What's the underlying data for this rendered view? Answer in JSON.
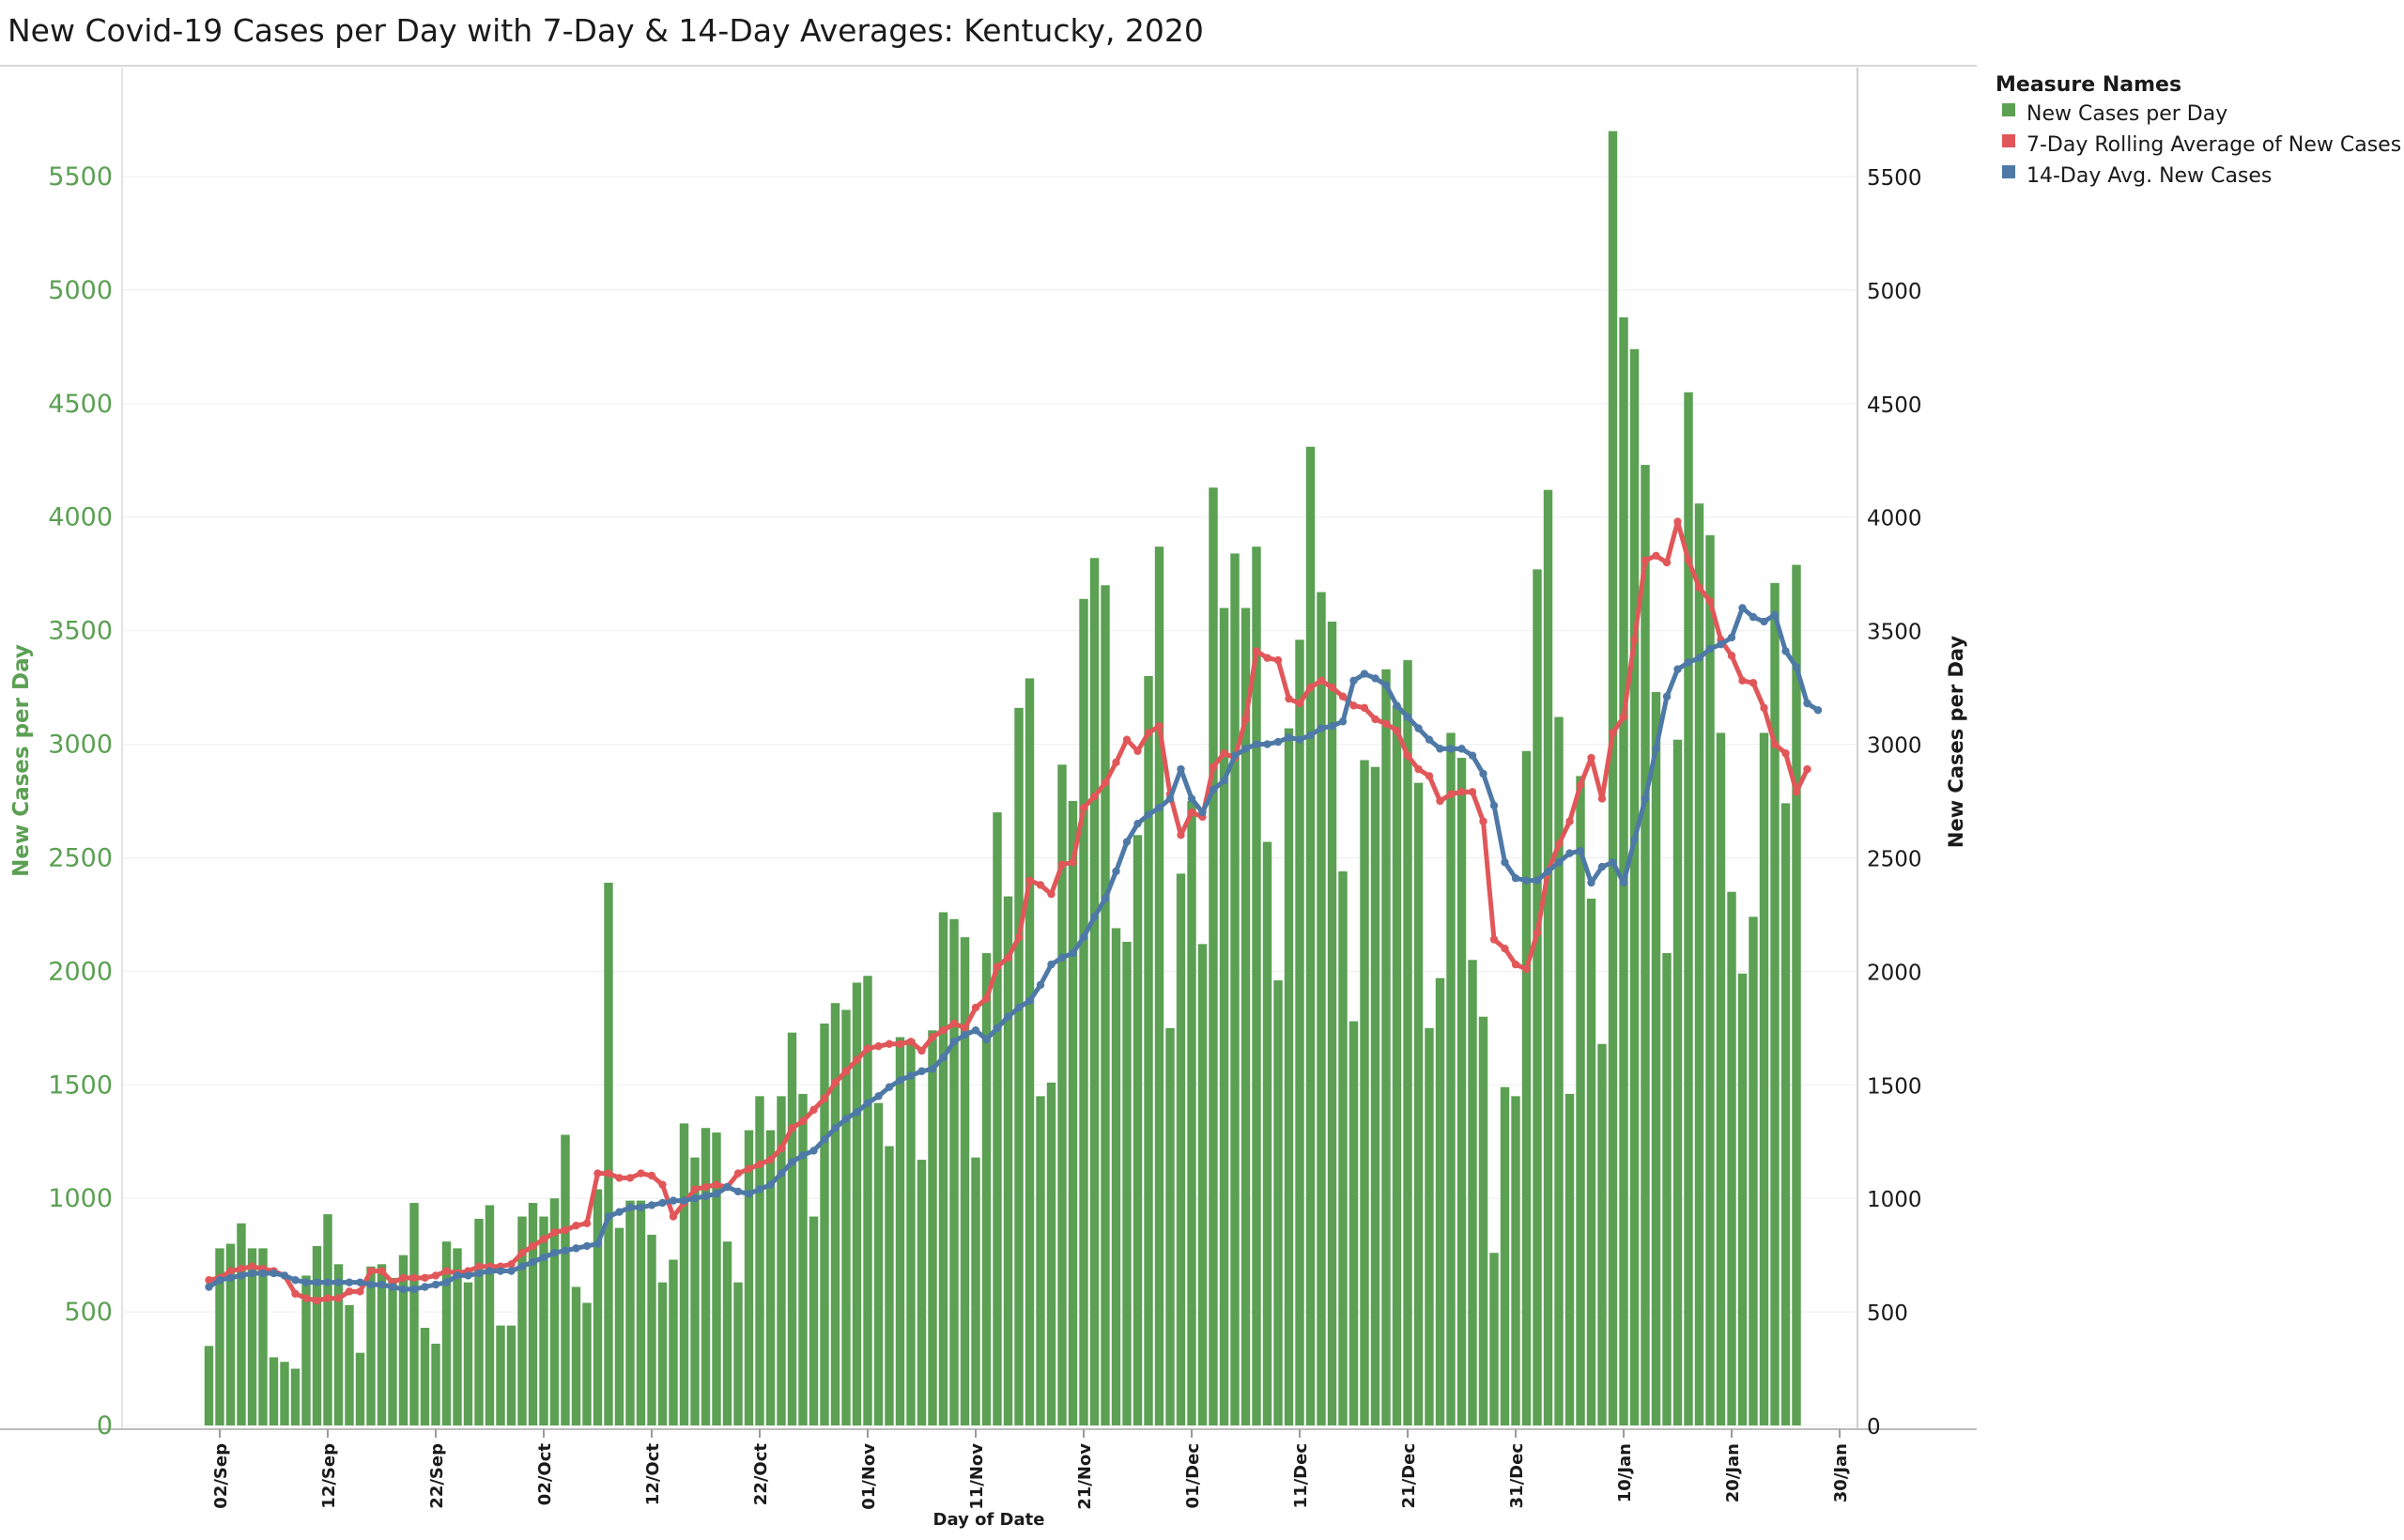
{
  "chart_data": {
    "type": "bar",
    "title": "New Covid-19 Cases per Day with 7-Day & 14-Day Averages: Kentucky,  2020",
    "xlabel": "Day of Date",
    "ylabel": "New Cases per Day",
    "ylabel_right": "New Cases per Day",
    "ylim": [
      0,
      5950
    ],
    "yticks": [
      0,
      500,
      1000,
      1500,
      2000,
      2500,
      3000,
      3500,
      4000,
      4500,
      5000,
      5500
    ],
    "ytick_labels": [
      "0",
      "500",
      "1000",
      "1500",
      "2000",
      "2500",
      "3000",
      "3500",
      "4000",
      "4500",
      "5000",
      "5500"
    ],
    "xticks": [
      "2020-09-02",
      "2020-09-12",
      "2020-09-22",
      "2020-10-02",
      "2020-10-12",
      "2020-10-22",
      "2020-11-01",
      "2020-11-11",
      "2020-11-21",
      "2020-12-01",
      "2020-12-11",
      "2020-12-21",
      "2020-12-31",
      "2021-01-10",
      "2021-01-20",
      "2021-01-30"
    ],
    "xtick_labels": [
      "02/Sep",
      "12/Sep",
      "22/Sep",
      "02/Oct",
      "12/Oct",
      "22/Oct",
      "01/Nov",
      "11/Nov",
      "21/Nov",
      "01/Dec",
      "11/Dec",
      "21/Dec",
      "31/Dec",
      "10/Jan",
      "20/Jan",
      "30/Jan"
    ],
    "xlim": [
      "2020-08-25",
      "2021-01-30"
    ],
    "grid": true,
    "legend": {
      "title": "Measure Names",
      "position": "top-right",
      "entries": [
        {
          "label": "New Cases per Day",
          "color": "#5ba053"
        },
        {
          "label": "7-Day Rolling  Average of New Cases",
          "color": "#e15759"
        },
        {
          "label": "14-Day Avg. New Cases",
          "color": "#4e79a7"
        }
      ]
    },
    "start_date": "2020-09-01",
    "series": [
      {
        "name": "New Cases per Day",
        "type": "bar",
        "color": "#5ba053",
        "values": [
          350,
          780,
          800,
          890,
          780,
          780,
          300,
          280,
          250,
          660,
          790,
          930,
          710,
          530,
          320,
          700,
          710,
          650,
          750,
          980,
          430,
          360,
          810,
          780,
          630,
          910,
          970,
          440,
          440,
          920,
          980,
          920,
          1000,
          1280,
          610,
          540,
          1040,
          2390,
          870,
          990,
          990,
          840,
          630,
          730,
          1330,
          1180,
          1310,
          1290,
          810,
          630,
          1300,
          1450,
          1300,
          1450,
          1730,
          1460,
          920,
          1770,
          1860,
          1830,
          1950,
          1980,
          1420,
          1230,
          1710,
          1700,
          1170,
          1740,
          2260,
          2230,
          2150,
          1180,
          2080,
          2700,
          2330,
          3160,
          3290,
          1450,
          1510,
          2910,
          2750,
          3640,
          3820,
          3700,
          2190,
          2130,
          2600,
          3300,
          3870,
          1750,
          2430,
          2750,
          2120,
          4130,
          3600,
          3840,
          3600,
          3870,
          2570,
          1960,
          3070,
          3460,
          4310,
          3670,
          3540,
          2440,
          1780,
          2930,
          2900,
          3330,
          3170,
          3370,
          2830,
          1750,
          1970,
          3050,
          2940,
          2050,
          1800,
          760,
          1490,
          1450,
          2970,
          3770,
          4120,
          3120,
          1460,
          2860,
          2320,
          1680,
          5700,
          4880,
          4740,
          4230,
          3230,
          2080,
          3020,
          4550,
          4060,
          3920,
          3050,
          2350,
          1990,
          2240,
          3050,
          3710,
          2740,
          3790
        ]
      },
      {
        "name": "7-Day Rolling  Average of New Cases",
        "type": "line",
        "color": "#e15759",
        "values": [
          640,
          650,
          680,
          690,
          700,
          690,
          680,
          660,
          580,
          560,
          550,
          560,
          560,
          590,
          590,
          680,
          680,
          630,
          650,
          650,
          650,
          660,
          680,
          670,
          680,
          700,
          700,
          700,
          710,
          760,
          790,
          820,
          850,
          860,
          880,
          890,
          1110,
          1110,
          1090,
          1090,
          1110,
          1100,
          1060,
          920,
          980,
          1040,
          1050,
          1060,
          1050,
          1110,
          1130,
          1150,
          1170,
          1220,
          1310,
          1340,
          1390,
          1440,
          1510,
          1560,
          1610,
          1660,
          1670,
          1680,
          1680,
          1690,
          1650,
          1710,
          1740,
          1770,
          1750,
          1840,
          1880,
          2020,
          2060,
          2150,
          2400,
          2380,
          2340,
          2470,
          2480,
          2720,
          2770,
          2830,
          2920,
          3020,
          2970,
          3050,
          3080,
          2780,
          2600,
          2700,
          2680,
          2900,
          2960,
          2940,
          3110,
          3410,
          3380,
          3370,
          3200,
          3180,
          3250,
          3280,
          3250,
          3210,
          3170,
          3160,
          3110,
          3090,
          3060,
          2950,
          2890,
          2860,
          2750,
          2780,
          2790,
          2790,
          2660,
          2140,
          2100,
          2030,
          2010,
          2170,
          2440,
          2560,
          2660,
          2820,
          2940,
          2760,
          3050,
          3120,
          3460,
          3810,
          3830,
          3800,
          3980,
          3810,
          3690,
          3630,
          3460,
          3390,
          3280,
          3270,
          3160,
          3000,
          2960,
          2790,
          2890
        ]
      },
      {
        "name": "14-Day Avg. New Cases",
        "type": "line",
        "color": "#4e79a7",
        "values": [
          610,
          640,
          650,
          660,
          670,
          670,
          670,
          660,
          640,
          630,
          630,
          630,
          630,
          630,
          630,
          620,
          620,
          610,
          600,
          600,
          610,
          620,
          630,
          660,
          660,
          670,
          680,
          680,
          680,
          700,
          720,
          740,
          760,
          770,
          780,
          790,
          800,
          920,
          940,
          960,
          960,
          970,
          980,
          990,
          990,
          1000,
          1010,
          1020,
          1050,
          1030,
          1020,
          1040,
          1060,
          1110,
          1160,
          1190,
          1210,
          1260,
          1310,
          1350,
          1380,
          1420,
          1450,
          1490,
          1520,
          1540,
          1560,
          1570,
          1620,
          1690,
          1720,
          1740,
          1700,
          1750,
          1800,
          1840,
          1870,
          1940,
          2030,
          2060,
          2080,
          2150,
          2240,
          2320,
          2440,
          2570,
          2650,
          2690,
          2720,
          2760,
          2890,
          2760,
          2700,
          2800,
          2840,
          2950,
          2980,
          3000,
          3000,
          3010,
          3030,
          3020,
          3040,
          3070,
          3080,
          3100,
          3280,
          3310,
          3290,
          3260,
          3170,
          3120,
          3070,
          3020,
          2980,
          2980,
          2980,
          2950,
          2870,
          2730,
          2480,
          2410,
          2400,
          2400,
          2440,
          2480,
          2520,
          2530,
          2390,
          2460,
          2480,
          2390,
          2580,
          2760,
          2980,
          3210,
          3330,
          3360,
          3380,
          3420,
          3440,
          3470,
          3600,
          3560,
          3540,
          3570,
          3410,
          3340,
          3180,
          3150
        ]
      }
    ]
  }
}
